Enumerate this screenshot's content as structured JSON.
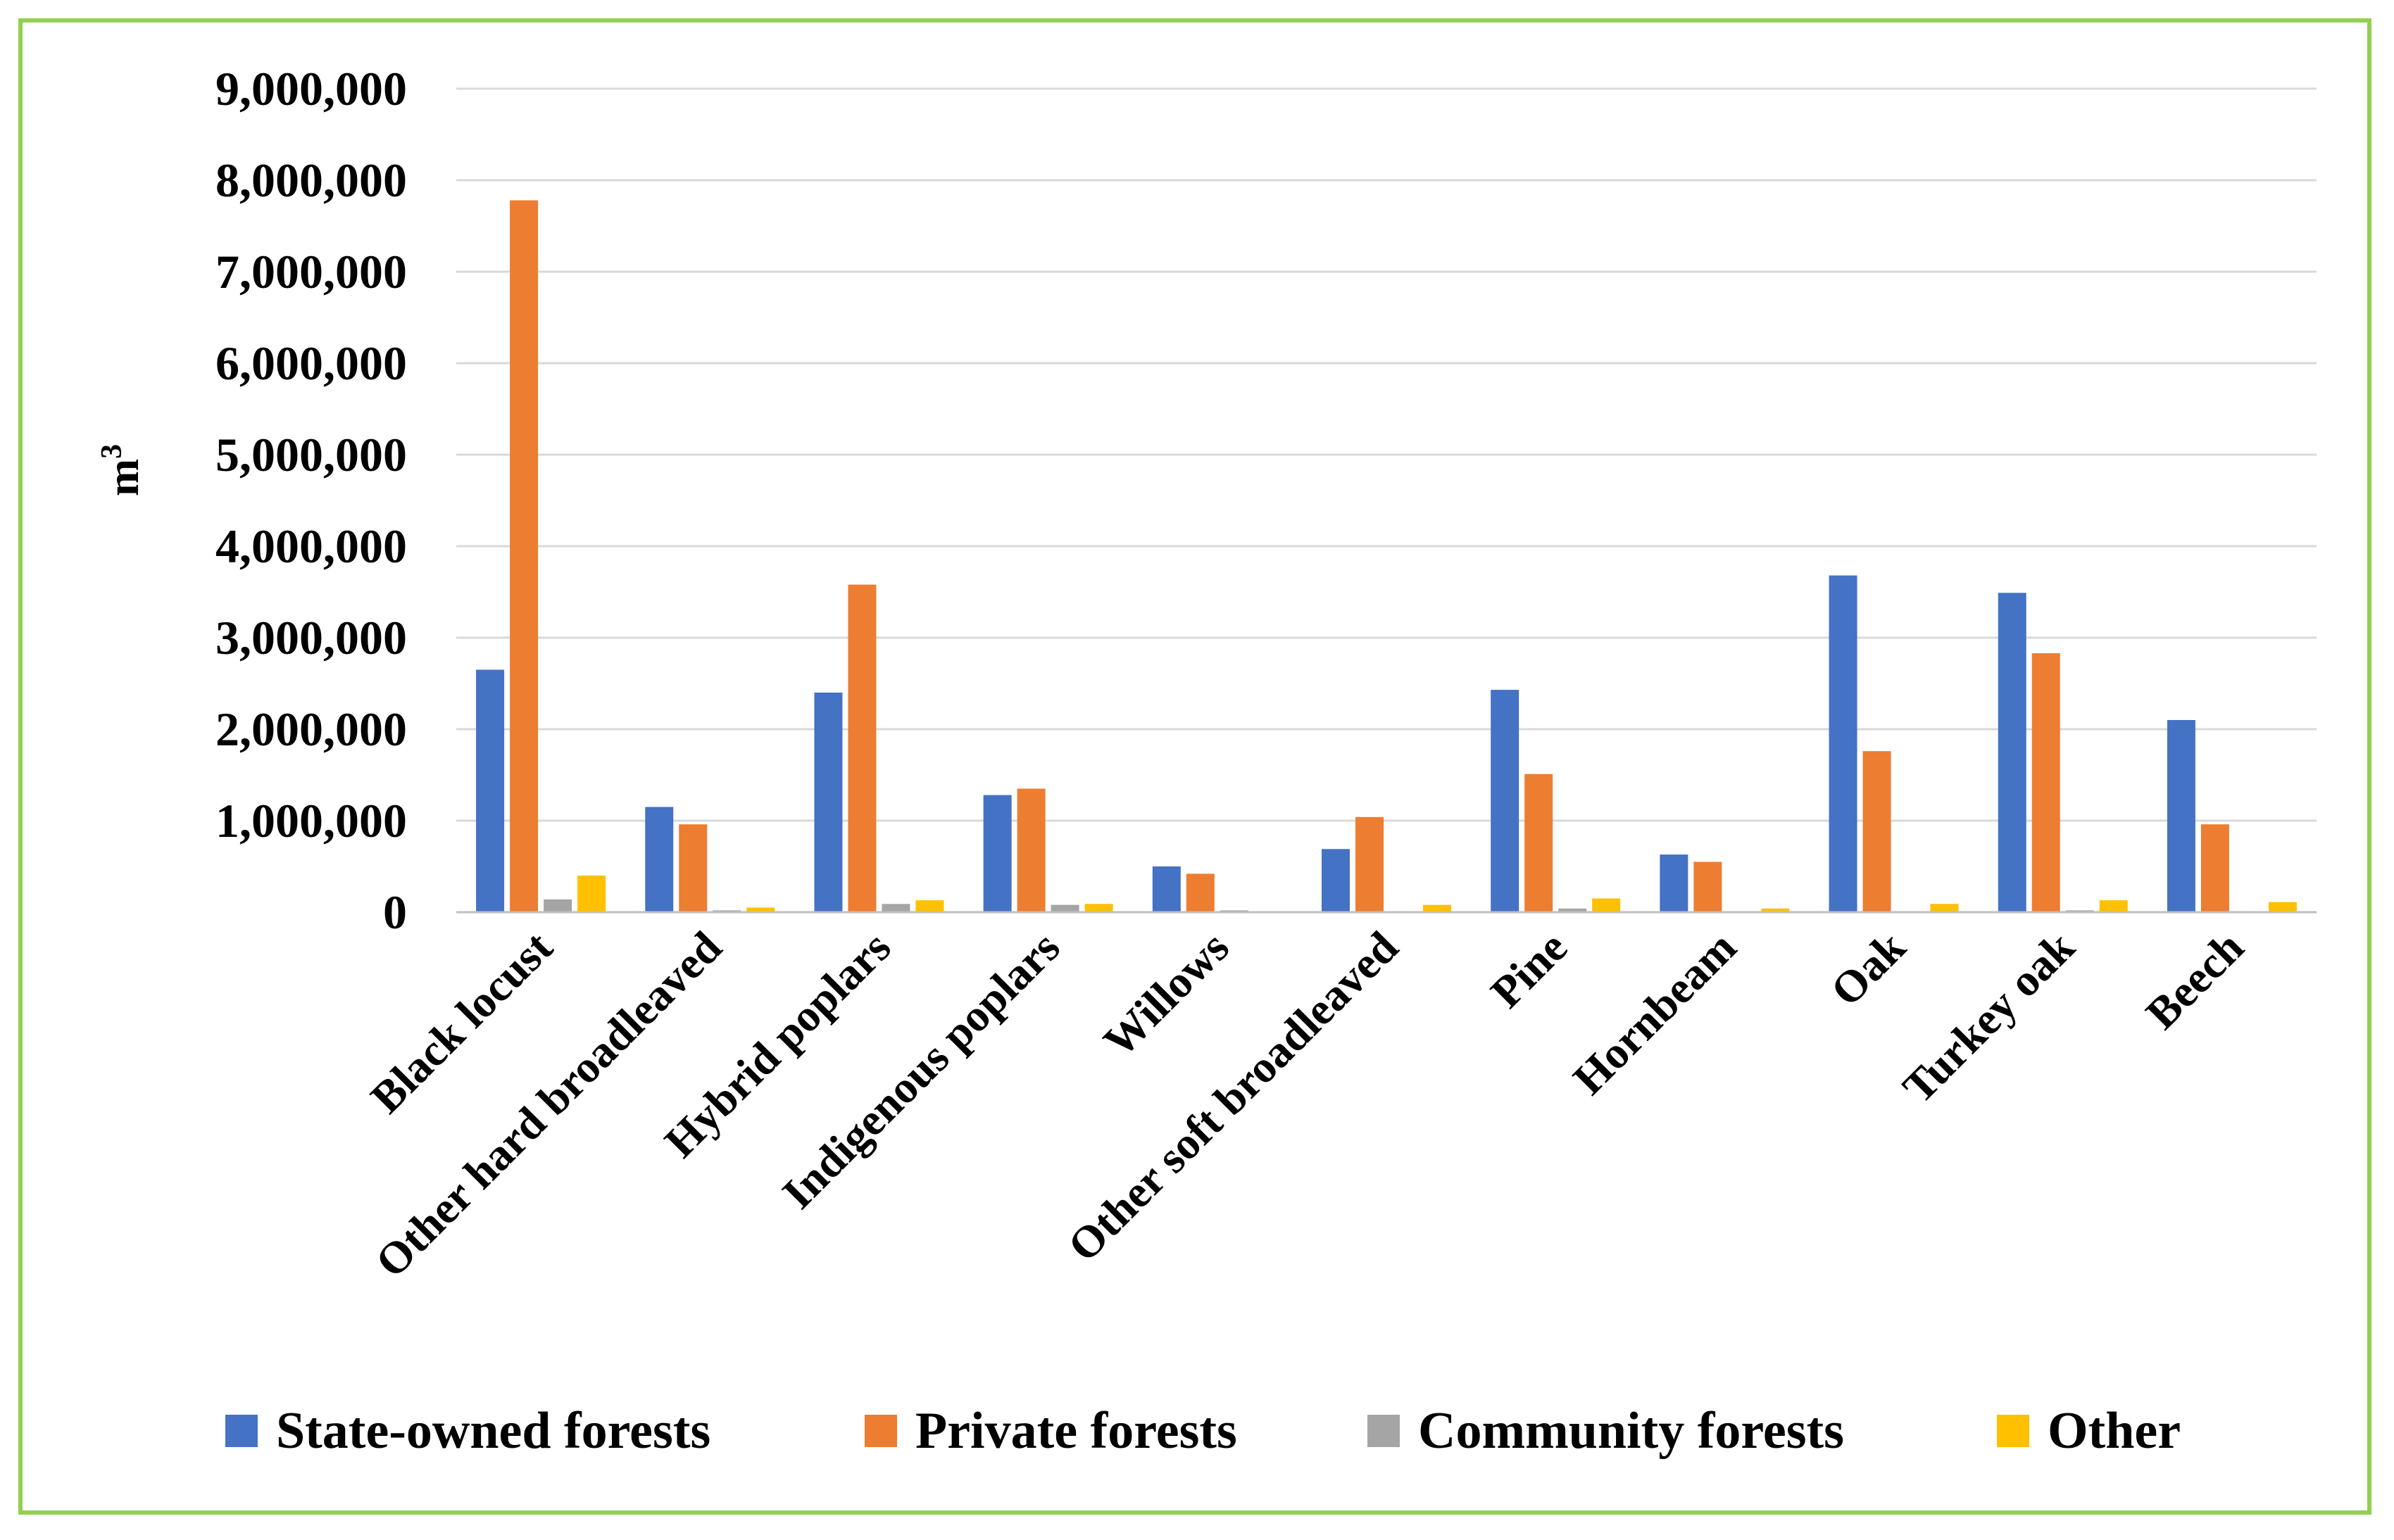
{
  "chart_data": {
    "type": "bar",
    "title": "",
    "xlabel": "",
    "ylabel": "m",
    "ylabel_superscript": "3",
    "ylim": [
      0,
      9000000
    ],
    "yticks": [
      0,
      1000000,
      2000000,
      3000000,
      4000000,
      5000000,
      6000000,
      7000000,
      8000000,
      9000000
    ],
    "ytick_labels": [
      "0",
      "1,000,000",
      "2,000,000",
      "3,000,000",
      "4,000,000",
      "5,000,000",
      "6,000,000",
      "7,000,000",
      "8,000,000",
      "9,000,000"
    ],
    "grid": true,
    "legend_position": "bottom",
    "categories": [
      "Black locust",
      "Other hard broadleaved",
      "Hybrid poplars",
      "Indigenous poplars",
      "Willows",
      "Other soft broadleaved",
      "Pine",
      "Hornbeam",
      "Oak",
      "Turkey oak",
      "Beech"
    ],
    "series": [
      {
        "name": "State-owned forests",
        "color": "#4472c4",
        "values": [
          2650000,
          1150000,
          2400000,
          1280000,
          500000,
          690000,
          2430000,
          630000,
          3680000,
          3490000,
          2100000
        ]
      },
      {
        "name": "Private forests",
        "color": "#ed7d31",
        "values": [
          7780000,
          960000,
          3580000,
          1350000,
          420000,
          1040000,
          1510000,
          550000,
          1760000,
          2830000,
          960000
        ]
      },
      {
        "name": "Community forests",
        "color": "#a5a5a5",
        "values": [
          140000,
          20000,
          90000,
          80000,
          20000,
          0,
          40000,
          0,
          0,
          20000,
          0
        ]
      },
      {
        "name": "Other",
        "color": "#ffc000",
        "values": [
          400000,
          50000,
          130000,
          90000,
          0,
          80000,
          150000,
          40000,
          90000,
          130000,
          110000
        ]
      }
    ]
  }
}
